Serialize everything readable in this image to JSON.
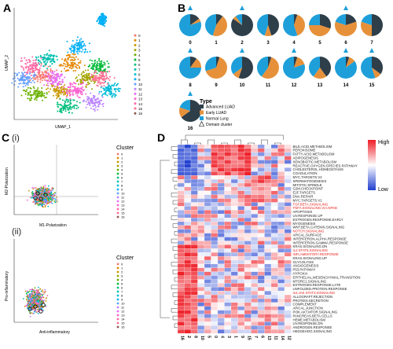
{
  "panels": {
    "A": {
      "label": "A",
      "xlabel": "UMAP_1",
      "ylabel": "UMAP_2",
      "legend": [
        "0",
        "1",
        "2",
        "3",
        "4",
        "5",
        "6",
        "7",
        "8",
        "9",
        "10",
        "11",
        "12",
        "13",
        "14",
        "15",
        "16"
      ]
    },
    "B": {
      "label": "B",
      "pies": [
        {
          "id": "0",
          "triangle": true,
          "dark": 15,
          "orange": 5,
          "blue": 80
        },
        {
          "id": "1",
          "triangle": false,
          "dark": 10,
          "orange": 45,
          "blue": 45
        },
        {
          "id": "2",
          "triangle": true,
          "dark": 85,
          "orange": 5,
          "blue": 10
        },
        {
          "id": "3",
          "triangle": false,
          "dark": 45,
          "orange": 10,
          "blue": 45
        },
        {
          "id": "4",
          "triangle": false,
          "dark": 5,
          "orange": 40,
          "blue": 55
        },
        {
          "id": "5",
          "triangle": false,
          "dark": 30,
          "orange": 45,
          "blue": 25
        },
        {
          "id": "6",
          "triangle": true,
          "dark": 20,
          "orange": 60,
          "blue": 20
        },
        {
          "id": "7",
          "triangle": false,
          "dark": 50,
          "orange": 30,
          "blue": 20
        },
        {
          "id": "8",
          "triangle": true,
          "dark": 10,
          "orange": 15,
          "blue": 75
        },
        {
          "id": "9",
          "triangle": false,
          "dark": 5,
          "orange": 65,
          "blue": 30
        },
        {
          "id": "10",
          "triangle": true,
          "dark": 55,
          "orange": 10,
          "blue": 35
        },
        {
          "id": "11",
          "triangle": false,
          "dark": 5,
          "orange": 55,
          "blue": 40
        },
        {
          "id": "12",
          "triangle": true,
          "dark": 5,
          "orange": 15,
          "blue": 80
        },
        {
          "id": "13",
          "triangle": false,
          "dark": 40,
          "orange": 20,
          "blue": 40
        },
        {
          "id": "14",
          "triangle": true,
          "dark": 5,
          "orange": 10,
          "blue": 85
        },
        {
          "id": "15",
          "triangle": true,
          "dark": 35,
          "orange": 10,
          "blue": 55
        },
        {
          "id": "16",
          "triangle": true,
          "dark": 65,
          "orange": 15,
          "blue": 20
        }
      ],
      "legend_title": "Type",
      "legend_items": [
        {
          "name": "Advanced LUAD",
          "color": "#2e3f4a"
        },
        {
          "name": "Early LUAD",
          "color": "#e6913a"
        },
        {
          "name": "Normal Lung",
          "color": "#1e9fd9"
        },
        {
          "name": "Domain cluster",
          "color": ""
        }
      ]
    },
    "C": {
      "label": "C",
      "sub1": "(i)",
      "sub2": "(ii)",
      "top_xlabel": "M1-Polarization",
      "top_ylabel": "M2-Polarization",
      "bottom_xlabel": "Anti-inflammatory",
      "bottom_ylabel": "Pro-inflammatory",
      "legend_title": "Cluster",
      "legend": [
        "0",
        "1",
        "2",
        "3",
        "4",
        "5",
        "6",
        "7",
        "8",
        "9",
        "10",
        "11",
        "12",
        "13",
        "14",
        "15",
        "16"
      ]
    },
    "D": {
      "label": "D",
      "legend_high": "High",
      "legend_low": "Low",
      "columns": [
        "16",
        "2",
        "8",
        "10",
        "5",
        "0",
        "4",
        "3",
        "1",
        "9",
        "15",
        "7",
        "6",
        "13",
        "11",
        "14",
        "12"
      ],
      "rows": [
        {
          "name": "BILE.ACID.METABOLISM",
          "red": false
        },
        {
          "name": "PEROXISOME",
          "red": false
        },
        {
          "name": "FATTY.ACID.METABOLISM",
          "red": false
        },
        {
          "name": "ADIPOGENESIS",
          "red": false
        },
        {
          "name": "XENOBIOTIC.METABOLISM",
          "red": false
        },
        {
          "name": "REACTIVE.OXYGEN.SPECIES.PATHWAY",
          "red": false
        },
        {
          "name": "CHOLESTEROL.HOMEOSTASIS",
          "red": false
        },
        {
          "name": "COAGULATION",
          "red": false
        },
        {
          "name": "MYC.TARGETS.V2",
          "red": false
        },
        {
          "name": "SPERMATOGENESIS",
          "red": false
        },
        {
          "name": "MITOTIC.SPINDLE",
          "red": false
        },
        {
          "name": "G2M.CHECKPOINT",
          "red": false
        },
        {
          "name": "E2F.TARGETS",
          "red": false
        },
        {
          "name": "DNA.REPAIR",
          "red": false
        },
        {
          "name": "MYC.TARGETS.V1",
          "red": false
        },
        {
          "name": "TGF.BETA.SIGNALING",
          "red": true
        },
        {
          "name": "TNFA.SIGNALING.VIA.NFKB",
          "red": true
        },
        {
          "name": "APOPTOSIS",
          "red": false
        },
        {
          "name": "UV.RESPONSE.UP",
          "red": false
        },
        {
          "name": "ESTROGEN.RESPONSE.EARLY",
          "red": false
        },
        {
          "name": "MYOGENESIS",
          "red": false
        },
        {
          "name": "WNT.BETA.CATENIN.SIGNALING",
          "red": false
        },
        {
          "name": "NOTCH.SIGNALING",
          "red": true
        },
        {
          "name": "APICAL.SURFACE",
          "red": false
        },
        {
          "name": "INTERFERON.ALPHA.RESPONSE",
          "red": false
        },
        {
          "name": "INTERFERON.GAMMA.RESPONSE",
          "red": false
        },
        {
          "name": "KRAS.SIGNALING.DN",
          "red": false
        },
        {
          "name": "IL2.STAT5.SIGNALING",
          "red": true
        },
        {
          "name": "INFLAMMATORY.RESPONSE",
          "red": true
        },
        {
          "name": "KRAS.SIGNALING.UP",
          "red": false
        },
        {
          "name": "GLYCOLYSIS",
          "red": false
        },
        {
          "name": "ANGIOGENESIS",
          "red": false
        },
        {
          "name": "P53.PATHWAY",
          "red": false
        },
        {
          "name": "HYPOXIA",
          "red": false
        },
        {
          "name": "EPITHELIAL.MESENCHYMAL.TRANSITION",
          "red": false
        },
        {
          "name": "MTORC1.SIGNALING",
          "red": false
        },
        {
          "name": "ESTROGEN.RESPONSE.LATE",
          "red": false
        },
        {
          "name": "UNFOLDED.PROTEIN.RESPONSE",
          "red": false
        },
        {
          "name": "IL6.JAK.STAT3.SIGNALING",
          "red": true
        },
        {
          "name": "ALLOGRAFT.REJECTION",
          "red": false
        },
        {
          "name": "PROTEIN.SECRETION",
          "red": false
        },
        {
          "name": "COMPLEMENT",
          "red": false
        },
        {
          "name": "APICAL.JUNCTION",
          "red": false
        },
        {
          "name": "PI3K.AKT.MTOR.SIGNALING",
          "red": false
        },
        {
          "name": "PANCREAS.BETA.CELLS",
          "red": false
        },
        {
          "name": "HEME.METABOLISM",
          "red": false
        },
        {
          "name": "UV.RESPONSE.DN",
          "red": false
        },
        {
          "name": "ANDROGEN.RESPONSE",
          "red": false
        },
        {
          "name": "HEDGEHOG.SIGNALING",
          "red": false
        }
      ]
    }
  },
  "colors": {
    "cluster": [
      "#f8766d",
      "#e58700",
      "#c99800",
      "#a3a500",
      "#6bb100",
      "#00ba38",
      "#00bf7d",
      "#00c0af",
      "#00bcd8",
      "#00b0f6",
      "#619cff",
      "#b983ff",
      "#e76bf3",
      "#fd61d1",
      "#ff67a4",
      "#ff6c91",
      "#8c564b"
    ],
    "heat_high": "#ee1c25",
    "heat_mid": "#ffffff",
    "heat_low": "#1f3fd0",
    "pathway_red": "#e8201c"
  }
}
